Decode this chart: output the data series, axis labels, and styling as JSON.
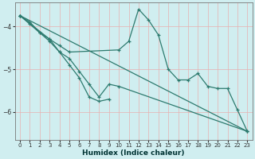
{
  "title": "",
  "xlabel": "Humidex (Indice chaleur)",
  "ylabel": "",
  "bg_color": "#d0eef0",
  "grid_color_v": "#e8b0b0",
  "grid_color_h": "#e8b0b0",
  "line_color": "#2d7a6e",
  "xlim": [
    -0.5,
    23.5
  ],
  "ylim": [
    -6.65,
    -3.45
  ],
  "yticks": [
    -6,
    -5,
    -4
  ],
  "xticks": [
    0,
    1,
    2,
    3,
    4,
    5,
    6,
    7,
    8,
    9,
    10,
    11,
    12,
    13,
    14,
    15,
    16,
    17,
    18,
    19,
    20,
    21,
    22,
    23
  ],
  "series": [
    {
      "x": [
        0,
        1,
        2,
        3,
        4,
        5,
        10,
        11,
        12,
        13,
        14,
        15,
        16,
        17,
        18,
        19,
        20,
        21,
        22,
        23
      ],
      "y": [
        -3.75,
        -3.9,
        -4.15,
        -4.3,
        -4.45,
        -4.6,
        -4.55,
        -4.35,
        -3.6,
        -3.85,
        -4.2,
        -5.0,
        -5.25,
        -5.25,
        -5.1,
        -5.4,
        -5.45,
        -5.45,
        -5.95,
        -6.45
      ]
    },
    {
      "x": [
        0,
        1,
        2,
        3,
        4,
        5,
        6,
        7,
        8,
        9,
        10,
        23
      ],
      "y": [
        -3.75,
        -3.95,
        -4.15,
        -4.35,
        -4.6,
        -4.75,
        -5.05,
        -5.35,
        -5.65,
        -5.35,
        -5.4,
        -6.45
      ]
    },
    {
      "x": [
        0,
        3,
        4,
        5,
        6,
        7,
        8,
        9
      ],
      "y": [
        -3.75,
        -4.3,
        -4.6,
        -4.9,
        -5.2,
        -5.65,
        -5.75,
        -5.7
      ]
    },
    {
      "x": [
        0,
        23
      ],
      "y": [
        -3.75,
        -6.45
      ]
    }
  ]
}
